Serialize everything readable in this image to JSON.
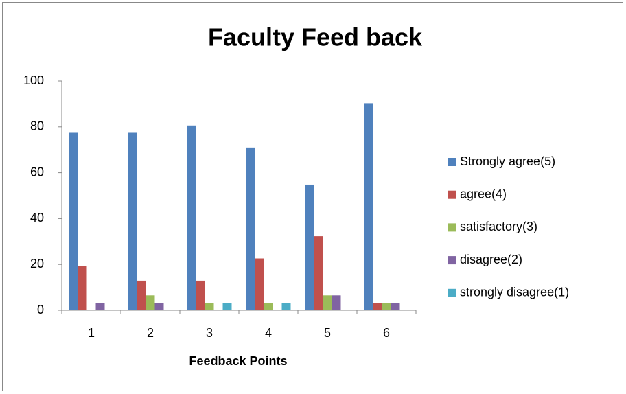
{
  "chart_data": {
    "type": "bar",
    "title": "Faculty Feed back",
    "x_label": "Feedback Points",
    "categories": [
      "1",
      "2",
      "3",
      "4",
      "5",
      "6"
    ],
    "series": [
      {
        "name": "Strongly agree(5)",
        "color": "#4f81bd",
        "values": [
          77.4,
          77.4,
          80.6,
          71,
          54.8,
          90.3
        ]
      },
      {
        "name": "agree(4)",
        "color": "#c0504d",
        "values": [
          19.4,
          12.9,
          12.9,
          22.6,
          32.3,
          3.2
        ]
      },
      {
        "name": "satisfactory(3)",
        "color": "#9bbb59",
        "values": [
          0,
          6.5,
          3.2,
          3.2,
          6.5,
          3.2
        ]
      },
      {
        "name": "disagree(2)",
        "color": "#8064a2",
        "values": [
          3.2,
          3.2,
          0,
          0,
          6.5,
          3.2
        ]
      },
      {
        "name": "strongly disagree(1)",
        "color": "#4bacc6",
        "values": [
          0,
          0,
          3.2,
          3.2,
          0,
          0
        ]
      }
    ],
    "ylim": [
      0,
      100
    ],
    "yticks": [
      0,
      20,
      40,
      60,
      80,
      100
    ],
    "grid": false,
    "legend": "right"
  }
}
